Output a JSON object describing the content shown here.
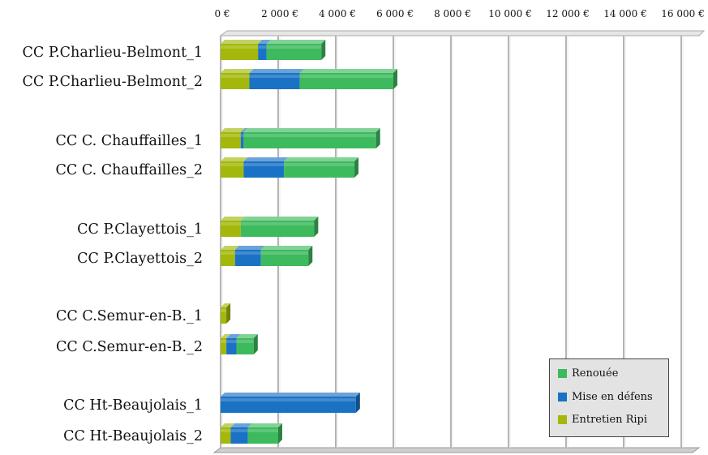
{
  "chart_data": {
    "type": "bar",
    "orientation": "horizontal",
    "stacked": true,
    "categories": [
      "CC P.Charlieu-Belmont_1",
      "CC P.Charlieu-Belmont_2",
      "CC C. Chauffailles_1",
      "CC C. Chauffailles_2",
      "CC P.Clayettois_1",
      "CC P.Clayettois_2",
      "CC C.Semur-en-B._1",
      "CC C.Semur-en-B._2",
      "CC Ht-Beaujolais_1",
      "CC Ht-Beaujolais_2"
    ],
    "series": [
      {
        "name": "Entretien Ripi",
        "color": "#a3b80b",
        "values": [
          1300,
          1000,
          700,
          800,
          700,
          500,
          200,
          200,
          0,
          350
        ]
      },
      {
        "name": "Mise en défens",
        "color": "#1a72c4",
        "values": [
          300,
          1750,
          100,
          1400,
          0,
          900,
          0,
          350,
          4700,
          600
        ]
      },
      {
        "name": "Renouée",
        "color": "#3dba5e",
        "values": [
          1900,
          3250,
          4600,
          2450,
          2550,
          1650,
          0,
          600,
          0,
          1050
        ]
      }
    ],
    "ticks": [
      "0 €",
      "2 000 €",
      "4 000 €",
      "6 000 €",
      "8 000 €",
      "10 000 €",
      "12 000 €",
      "14 000 €",
      "16 000 €"
    ],
    "xlim": [
      0,
      16000
    ],
    "grid": true,
    "legend_position": "bottom-right",
    "legend_order": [
      "Renouée",
      "Mise en défens",
      "Entretien Ripi"
    ]
  }
}
